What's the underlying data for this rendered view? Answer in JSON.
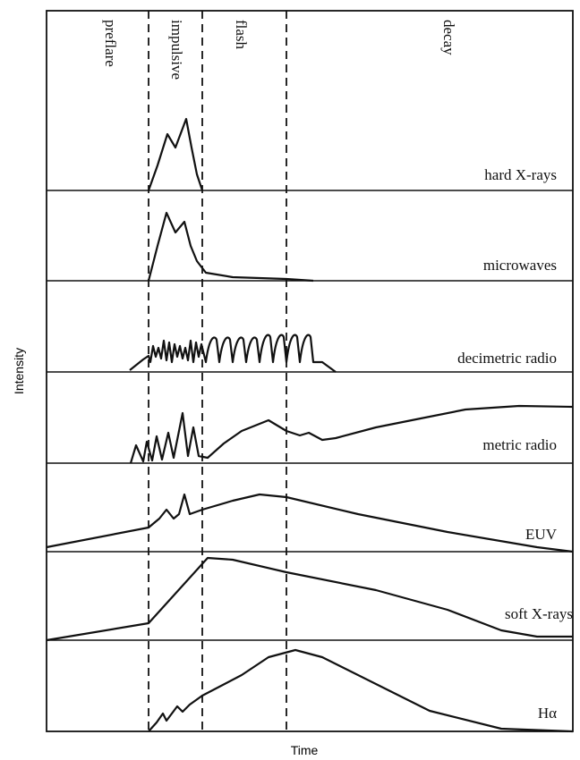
{
  "phases": [
    "preflare",
    "impulsive",
    "flash",
    "decay"
  ],
  "panels": [
    "hard X-rays",
    "microwaves",
    "decimetric radio",
    "metric radio",
    "EUV",
    "soft X-rays",
    "Hα"
  ],
  "y_axis_label": "Intensity",
  "x_axis_label": "Time"
}
